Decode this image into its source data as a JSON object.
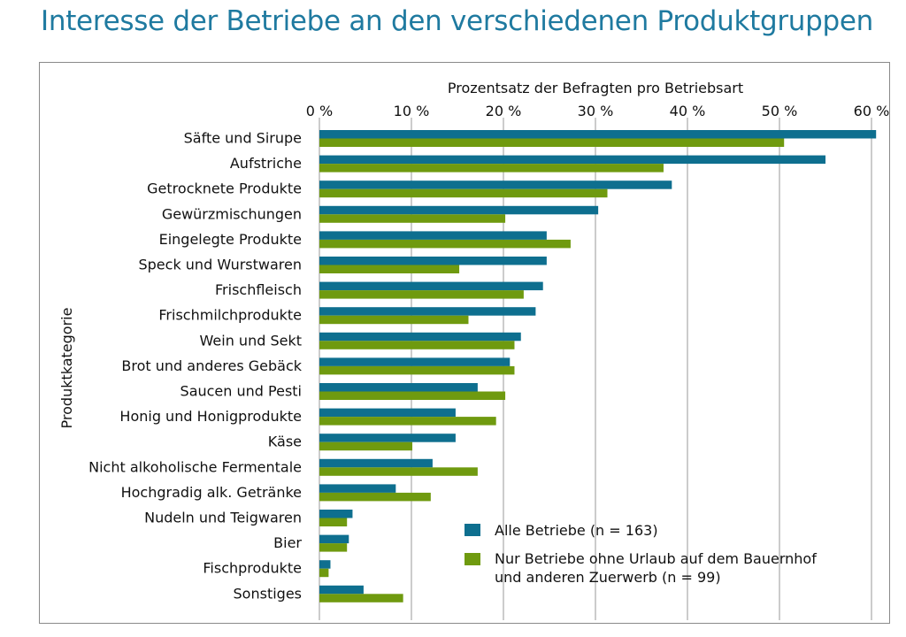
{
  "page_title": "Interesse der Betriebe an den verschiedenen Produktgruppen",
  "colors": {
    "series_all": "#0e6f8f",
    "series_subset": "#6f9a0f",
    "grid": "#9a9a9a",
    "title": "#1f7aa0"
  },
  "chart_data": {
    "type": "bar",
    "orientation": "horizontal",
    "title": "Interesse der Betriebe an den verschiedenen Produktgruppen",
    "xlabel": "Prozentsatz der Befragten pro Betriebsart",
    "ylabel": "Produktkategorie",
    "xlim": [
      0,
      60
    ],
    "xticks": [
      0,
      10,
      20,
      30,
      40,
      50,
      60
    ],
    "xtick_labels": [
      "0 %",
      "10 %",
      "20 %",
      "30 %",
      "40 %",
      "50 %",
      "60 %"
    ],
    "categories": [
      "Säfte und Sirupe",
      "Aufstriche",
      "Getrocknete Produkte",
      "Gewürzmischungen",
      "Eingelegte Produkte",
      "Speck und Wurstwaren",
      "Frischfleisch",
      "Frischmilchprodukte",
      "Wein und Sekt",
      "Brot und anderes Gebäck",
      "Saucen und Pesti",
      "Honig und Honigprodukte",
      "Käse",
      "Nicht alkoholische Fermentale",
      "Hochgradig alk. Getränke",
      "Nudeln und Teigwaren",
      "Bier",
      "Fischprodukte",
      "Sonstiges"
    ],
    "series": [
      {
        "name": "Alle Betriebe (n = 163)",
        "values": [
          60.5,
          55,
          38.3,
          30.3,
          24.7,
          24.7,
          24.3,
          23.5,
          21.9,
          20.7,
          17.2,
          14.8,
          14.8,
          12.3,
          8.3,
          3.6,
          3.2,
          1.2,
          4.8
        ]
      },
      {
        "name": "Nur Betriebe ohne Urlaub auf dem Bauernhof und anderen Zuerwerb (n = 99)",
        "legend_lines": [
          "Nur Betriebe ohne Urlaub auf dem Bauernhof",
          "und anderen Zuerwerb (n = 99)"
        ],
        "values": [
          50.5,
          37.4,
          31.3,
          20.2,
          27.3,
          15.2,
          22.2,
          16.2,
          21.2,
          21.2,
          20.2,
          19.2,
          10.1,
          17.2,
          12.1,
          3.0,
          3.0,
          1.0,
          9.1
        ]
      }
    ],
    "legend_position": "bottom-right"
  }
}
